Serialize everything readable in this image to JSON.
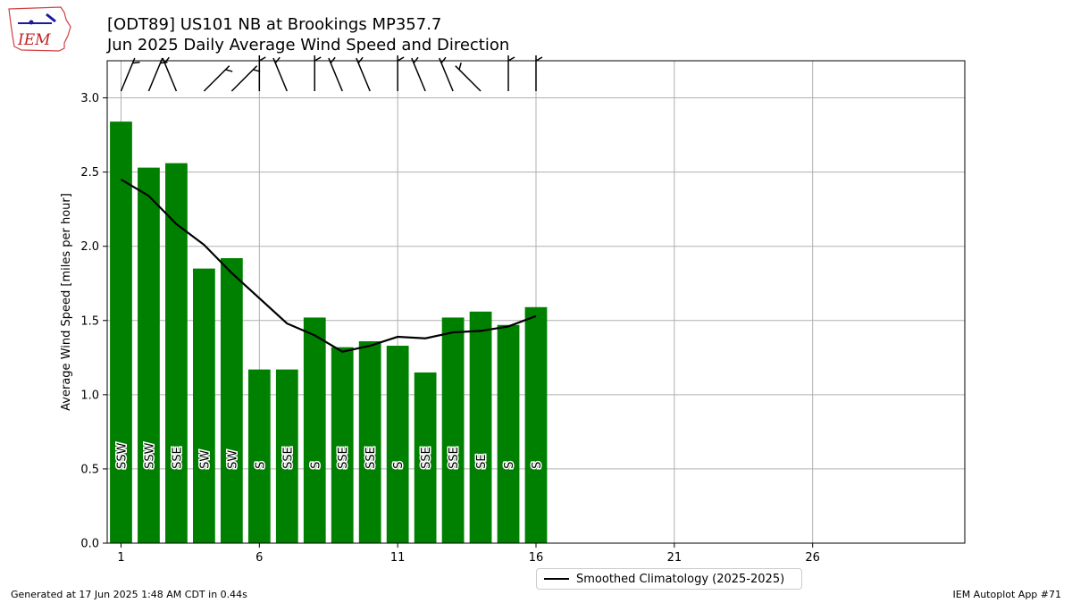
{
  "logo": {
    "text": "IEM"
  },
  "title_line1": "[ODT89] US101 NB at Brookings MP357.7",
  "title_line2": "Jun 2025 Daily Average Wind Speed and Direction",
  "footer_left": "Generated at 17 Jun 2025 1:48 AM CDT in 0.44s",
  "footer_right": "IEM Autoplot App #71",
  "colors": {
    "bar": "#008000",
    "climo_line": "#000000",
    "grid": "#b0b0b0"
  },
  "chart_data": {
    "type": "bar",
    "ylabel": "Average Wind Speed [miles per hour]",
    "xlim": [
      0.5,
      31.5
    ],
    "ylim": [
      0,
      3.25
    ],
    "xticks": [
      1,
      6,
      11,
      16,
      21,
      26
    ],
    "yticks": [
      0.0,
      0.5,
      1.0,
      1.5,
      2.0,
      2.5,
      3.0
    ],
    "ytick_labels": [
      "0.0",
      "0.5",
      "1.0",
      "1.5",
      "2.0",
      "2.5",
      "3.0"
    ],
    "grid": true,
    "legend_position": "bottom-center-outside",
    "days": [
      1,
      2,
      3,
      4,
      5,
      6,
      7,
      8,
      9,
      10,
      11,
      12,
      13,
      14,
      15,
      16
    ],
    "values": [
      2.84,
      2.53,
      2.56,
      1.85,
      1.92,
      1.17,
      1.17,
      1.52,
      1.32,
      1.36,
      1.33,
      1.15,
      1.52,
      1.56,
      1.47,
      1.59
    ],
    "directions": [
      "SSW",
      "SSW",
      "SSE",
      "SW",
      "SW",
      "S",
      "SSE",
      "S",
      "SSE",
      "SSE",
      "S",
      "SSE",
      "SSE",
      "SE",
      "S",
      "S"
    ],
    "climatology": {
      "name": "Smoothed Climatology (2025-2025)",
      "x": [
        1,
        2,
        3,
        4,
        5,
        6,
        7,
        8,
        9,
        10,
        11,
        12,
        13,
        14,
        15,
        16
      ],
      "y": [
        2.45,
        2.34,
        2.15,
        2.01,
        1.82,
        1.65,
        1.48,
        1.4,
        1.29,
        1.33,
        1.39,
        1.38,
        1.42,
        1.43,
        1.46,
        1.53
      ]
    }
  }
}
